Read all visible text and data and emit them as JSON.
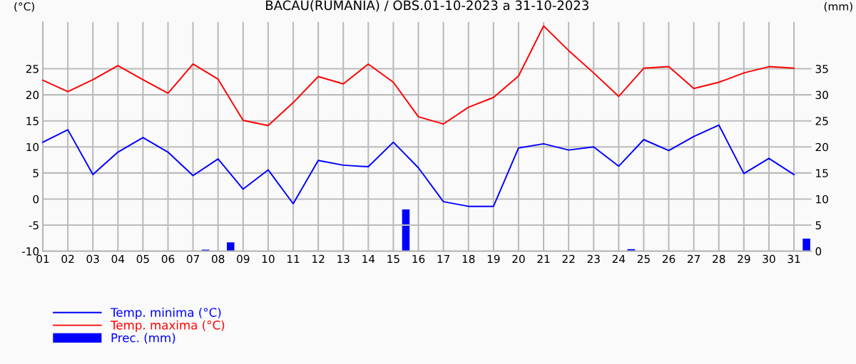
{
  "chart_data": {
    "type": "line",
    "title": "BACAU(RUMANIA) / OBS.01-10-2023 a 31-10-2023",
    "ylabel": "(°C)",
    "y2label": "(mm)",
    "x": [
      1,
      2,
      3,
      4,
      5,
      6,
      7,
      8,
      9,
      10,
      11,
      12,
      13,
      14,
      15,
      16,
      17,
      18,
      19,
      20,
      21,
      22,
      23,
      24,
      25,
      26,
      27,
      28,
      29,
      30,
      31
    ],
    "series": [
      {
        "name": "Temp. minima (°C)",
        "color": "#0000ff",
        "values": [
          10.9,
          13.3,
          4.7,
          9.0,
          11.8,
          9.0,
          4.5,
          7.7,
          1.9,
          5.6,
          -0.9,
          7.4,
          6.5,
          6.2,
          10.9,
          6.0,
          -0.5,
          -1.4,
          -1.4,
          9.8,
          10.6,
          9.4,
          10.0,
          6.3,
          11.4,
          9.3,
          12.0,
          14.2,
          4.9,
          7.8,
          4.7
        ]
      },
      {
        "name": "Temp. maxima (°C)",
        "color": "#ff0000",
        "values": [
          22.8,
          20.6,
          22.9,
          25.6,
          22.9,
          20.3,
          25.9,
          23.0,
          15.1,
          14.1,
          18.5,
          23.5,
          22.1,
          25.9,
          22.4,
          15.8,
          14.4,
          17.6,
          19.5,
          23.6,
          33.2,
          28.5,
          24.2,
          19.7,
          25.1,
          25.4,
          21.2,
          22.4,
          24.2,
          25.4,
          25.1
        ]
      },
      {
        "name": "Prec. (mm)",
        "type": "bar",
        "axis": "y2",
        "color": "#0000ff",
        "x": [
          7.5,
          8.5,
          15.5,
          24.5,
          31.5
        ],
        "values": [
          0.3,
          1.7,
          8.0,
          0.4,
          2.4
        ]
      }
    ],
    "xlim": [
      1,
      31.7
    ],
    "xticks": [
      {
        "value": 1,
        "label": "01"
      },
      {
        "value": 2,
        "label": "02"
      },
      {
        "value": 3,
        "label": "03"
      },
      {
        "value": 4,
        "label": "04"
      },
      {
        "value": 5,
        "label": "05"
      },
      {
        "value": 6,
        "label": "06"
      },
      {
        "value": 7,
        "label": "07"
      },
      {
        "value": 8,
        "label": "08"
      },
      {
        "value": 9,
        "label": "09"
      },
      10,
      11,
      12,
      13,
      14,
      15,
      16,
      17,
      18,
      19,
      20,
      21,
      22,
      23,
      24,
      25,
      26,
      27,
      28,
      29,
      30,
      31
    ],
    "ylim": [
      -10,
      34
    ],
    "yticks": [
      -10,
      -5,
      0,
      5,
      10,
      15,
      20,
      25
    ],
    "y2lim": [
      0,
      44
    ],
    "y2ticks": [
      0,
      5,
      10,
      15,
      20,
      25,
      30,
      35
    ],
    "grid": true,
    "legend": "bottom left"
  }
}
